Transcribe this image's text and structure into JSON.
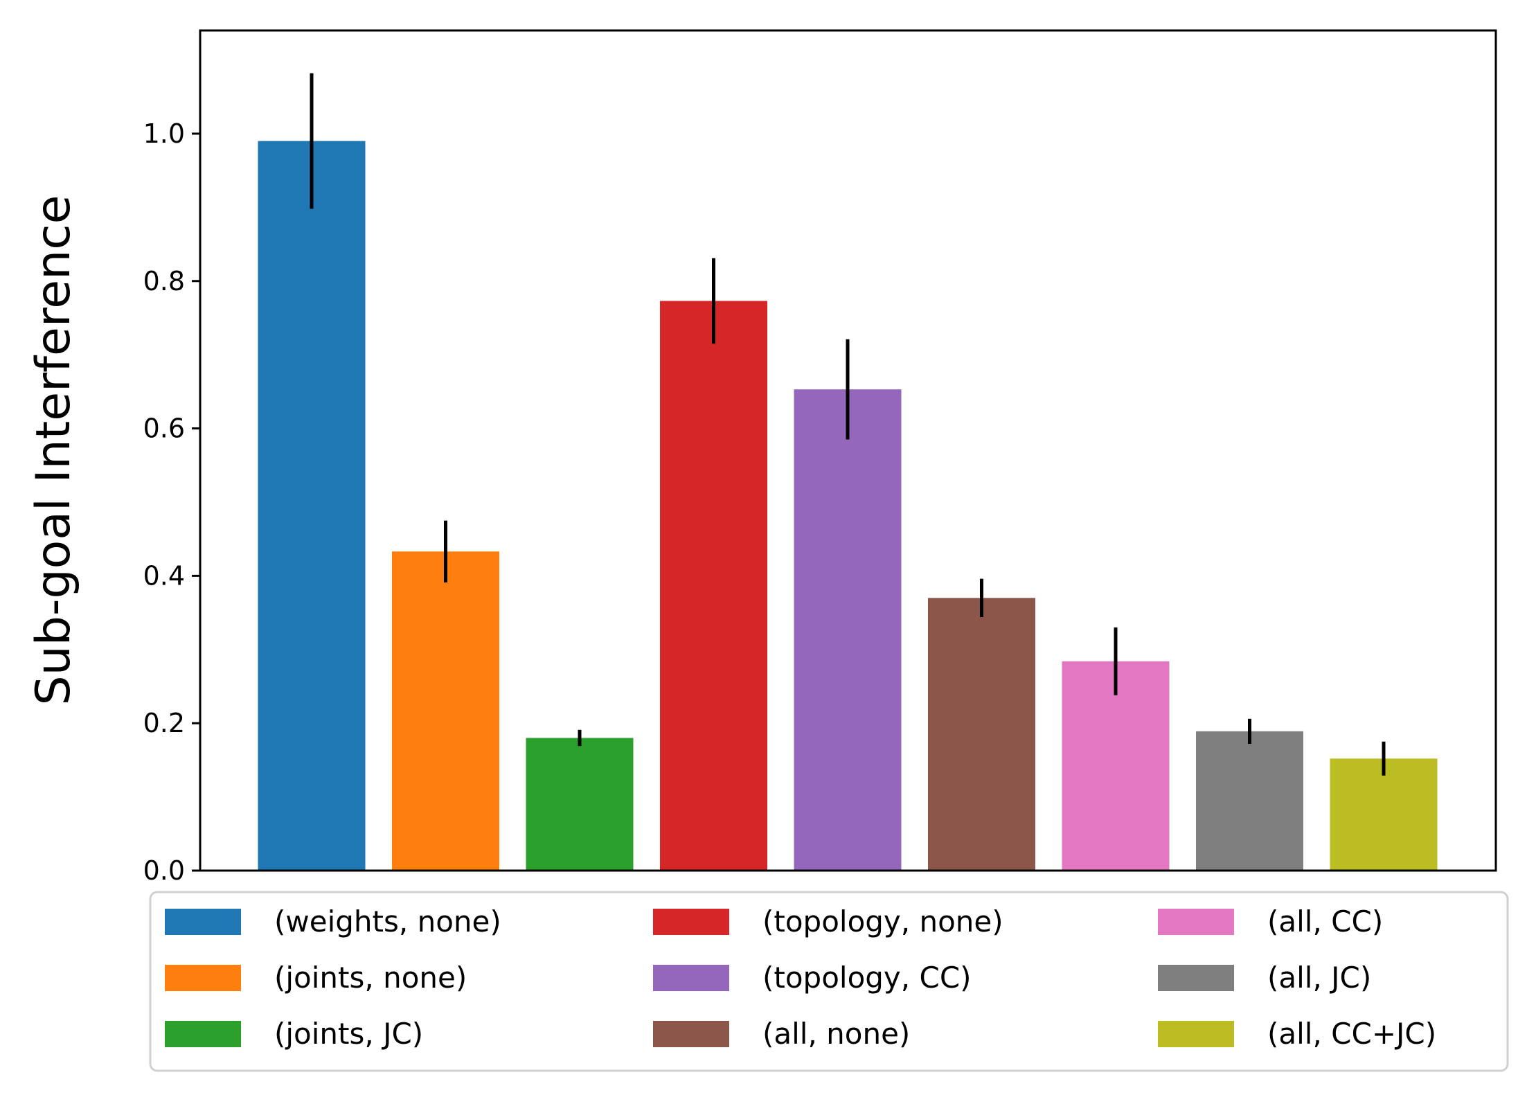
{
  "chart_data": {
    "type": "bar",
    "title": "",
    "xlabel": "",
    "ylabel": "Sub-goal Interference",
    "ylim": [
      0,
      1.14
    ],
    "yticks": [
      "0.0",
      "0.2",
      "0.4",
      "0.6",
      "0.8",
      "1.0"
    ],
    "grid": false,
    "legend_placement": "bottom",
    "categories": [
      "(weights, none)",
      "(joints, none)",
      "(joints, JC)",
      "(topology, none)",
      "(topology, CC)",
      "(all, none)",
      "(all, CC)",
      "(all, JC)",
      "(all, CC+JC)"
    ],
    "values": [
      0.99,
      0.433,
      0.18,
      0.773,
      0.653,
      0.37,
      0.284,
      0.189,
      0.152
    ],
    "errors": [
      0.092,
      0.042,
      0.011,
      0.058,
      0.068,
      0.026,
      0.046,
      0.017,
      0.023
    ],
    "colors": [
      "#1f77b4",
      "#ff7f0e",
      "#2ca02c",
      "#d62728",
      "#9467bd",
      "#8c564b",
      "#e377c2",
      "#7f7f7f",
      "#bcbd22"
    ]
  }
}
